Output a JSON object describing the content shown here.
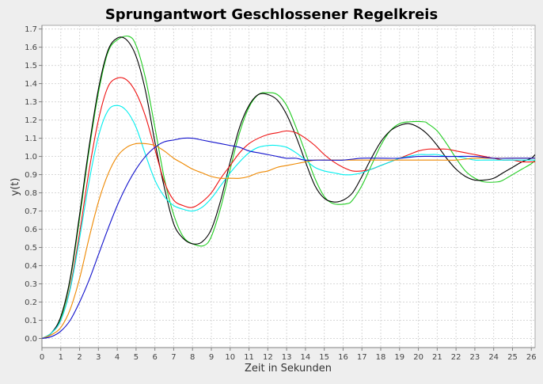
{
  "chart_data": {
    "type": "line",
    "title": "Sprungantwort Geschlossener Regelkreis",
    "xlabel": "Zeit in Sekunden",
    "ylabel": "y(t)",
    "xlim": [
      0,
      26.2
    ],
    "ylim": [
      -0.05,
      1.72
    ],
    "x_ticks": [
      0,
      1,
      2,
      3,
      4,
      5,
      6,
      7,
      8,
      9,
      10,
      11,
      12,
      13,
      14,
      15,
      16,
      17,
      18,
      19,
      20,
      21,
      22,
      23,
      24,
      25,
      26
    ],
    "y_ticks": [
      "0.0",
      "0.1",
      "0.2",
      "0.3",
      "0.4",
      "0.5",
      "0.6",
      "0.7",
      "0.8",
      "0.9",
      "1.0",
      "1.1",
      "1.2",
      "1.3",
      "1.4",
      "1.5",
      "1.6",
      "1.7"
    ],
    "grid": true,
    "legend": "none",
    "colors": {
      "background": "#eeeeee",
      "plot_background": "#ffffff",
      "grid": "#d8d8d8",
      "axis": "#808080"
    },
    "series": [
      {
        "color": "#22cc22",
        "x": [
          0,
          0.5,
          1,
          1.5,
          2,
          2.5,
          3,
          3.5,
          4,
          4.6,
          5,
          5.5,
          6,
          6.5,
          7,
          7.5,
          8,
          8.6,
          9,
          9.5,
          10,
          10.5,
          11,
          11.5,
          12,
          12.5,
          13,
          13.5,
          14,
          14.5,
          15,
          15.5,
          16.2,
          16.5,
          17,
          17.5,
          18,
          18.5,
          19,
          19.5,
          20.3,
          20.5,
          21,
          21.5,
          22,
          22.5,
          23,
          23.5,
          24.2,
          24.5,
          25,
          25.5,
          26,
          26.2
        ],
        "y": [
          0,
          0.03,
          0.11,
          0.32,
          0.66,
          1.03,
          1.35,
          1.57,
          1.64,
          1.66,
          1.61,
          1.43,
          1.16,
          0.88,
          0.68,
          0.56,
          0.52,
          0.51,
          0.56,
          0.72,
          0.93,
          1.13,
          1.27,
          1.34,
          1.35,
          1.34,
          1.28,
          1.16,
          1.02,
          0.88,
          0.78,
          0.74,
          0.74,
          0.76,
          0.84,
          0.95,
          1.06,
          1.14,
          1.18,
          1.19,
          1.19,
          1.18,
          1.14,
          1.07,
          0.99,
          0.92,
          0.88,
          0.86,
          0.86,
          0.87,
          0.9,
          0.93,
          0.96,
          0.98
        ]
      },
      {
        "color": "#000000",
        "x": [
          0,
          0.5,
          1,
          1.5,
          2,
          2.5,
          3,
          3.5,
          4,
          4.5,
          5,
          5.5,
          6,
          6.5,
          7,
          7.5,
          8,
          8.5,
          9,
          9.5,
          10,
          10.5,
          11,
          11.5,
          12,
          12.5,
          13,
          13.5,
          14,
          14.5,
          15,
          15.5,
          16,
          16.5,
          17,
          17.5,
          18,
          18.5,
          19,
          19.5,
          20,
          20.5,
          21,
          21.5,
          22,
          22.5,
          23,
          23.5,
          24,
          24.5,
          25,
          25.5,
          26,
          26.2
        ],
        "y": [
          0,
          0.03,
          0.12,
          0.33,
          0.68,
          1.05,
          1.37,
          1.58,
          1.65,
          1.64,
          1.55,
          1.36,
          1.08,
          0.83,
          0.63,
          0.55,
          0.52,
          0.53,
          0.6,
          0.76,
          0.97,
          1.16,
          1.28,
          1.34,
          1.34,
          1.31,
          1.23,
          1.11,
          0.97,
          0.84,
          0.77,
          0.75,
          0.76,
          0.8,
          0.89,
          0.99,
          1.08,
          1.14,
          1.17,
          1.18,
          1.16,
          1.12,
          1.06,
          0.99,
          0.93,
          0.89,
          0.87,
          0.87,
          0.88,
          0.91,
          0.94,
          0.97,
          0.99,
          1.01
        ]
      },
      {
        "color": "#ee1111",
        "x": [
          0,
          0.5,
          1,
          1.5,
          2,
          2.5,
          3,
          3.5,
          4,
          4.5,
          5,
          5.5,
          6,
          6.5,
          7,
          7.5,
          8,
          8.5,
          9,
          9.5,
          10,
          10.5,
          11,
          11.5,
          12,
          12.5,
          13,
          13.5,
          14,
          14.5,
          15,
          15.5,
          16,
          16.5,
          17,
          17.5,
          18,
          18.5,
          19,
          19.5,
          20,
          20.5,
          21,
          21.5,
          22,
          22.5,
          23,
          23.5,
          24,
          24.5,
          25,
          25.5,
          26,
          26.2
        ],
        "y": [
          0,
          0.03,
          0.1,
          0.28,
          0.58,
          0.92,
          1.2,
          1.38,
          1.43,
          1.42,
          1.35,
          1.22,
          1.04,
          0.86,
          0.76,
          0.73,
          0.72,
          0.75,
          0.8,
          0.88,
          0.95,
          1.02,
          1.07,
          1.1,
          1.12,
          1.13,
          1.14,
          1.13,
          1.1,
          1.06,
          1.01,
          0.97,
          0.94,
          0.92,
          0.92,
          0.93,
          0.95,
          0.97,
          0.99,
          1.01,
          1.03,
          1.04,
          1.04,
          1.04,
          1.03,
          1.02,
          1.01,
          1.0,
          0.99,
          0.98,
          0.98,
          0.97,
          0.97,
          0.97
        ]
      },
      {
        "color": "#00eeee",
        "x": [
          0,
          0.5,
          1,
          1.5,
          2,
          2.5,
          3,
          3.5,
          4,
          4.5,
          5,
          5.5,
          6,
          6.5,
          7,
          7.5,
          8,
          8.5,
          9,
          9.5,
          10,
          10.5,
          11,
          11.5,
          12,
          12.5,
          13,
          13.5,
          14,
          14.5,
          15,
          15.5,
          16,
          16.5,
          17,
          17.5,
          18,
          18.5,
          19,
          19.5,
          20,
          20.5,
          21,
          21.5,
          22,
          22.5,
          23,
          23.5,
          24,
          24.5,
          25,
          25.5,
          26,
          26.2
        ],
        "y": [
          0,
          0.03,
          0.1,
          0.27,
          0.55,
          0.86,
          1.11,
          1.25,
          1.28,
          1.25,
          1.16,
          1.01,
          0.87,
          0.78,
          0.73,
          0.71,
          0.7,
          0.72,
          0.77,
          0.84,
          0.91,
          0.97,
          1.02,
          1.05,
          1.06,
          1.06,
          1.05,
          1.02,
          0.98,
          0.94,
          0.92,
          0.91,
          0.9,
          0.9,
          0.91,
          0.93,
          0.95,
          0.97,
          0.99,
          1.0,
          1.01,
          1.01,
          1.01,
          1.0,
          1.0,
          0.99,
          0.98,
          0.98,
          0.98,
          0.98,
          0.98,
          0.98,
          0.98,
          0.98
        ]
      },
      {
        "color": "#ee8800",
        "x": [
          0,
          0.5,
          1,
          1.5,
          2,
          2.5,
          3,
          3.5,
          4,
          4.5,
          5,
          5.5,
          6,
          6.5,
          7,
          7.5,
          8,
          8.5,
          9,
          9.5,
          10,
          10.5,
          11,
          11.5,
          12,
          12.5,
          13,
          13.5,
          14,
          14.5,
          15,
          15.5,
          16,
          17,
          18,
          19,
          20,
          21,
          22,
          23,
          24,
          25,
          26,
          26.2
        ],
        "y": [
          0,
          0.02,
          0.06,
          0.16,
          0.33,
          0.55,
          0.75,
          0.9,
          1.0,
          1.05,
          1.07,
          1.07,
          1.06,
          1.03,
          0.99,
          0.96,
          0.93,
          0.91,
          0.89,
          0.88,
          0.88,
          0.88,
          0.89,
          0.91,
          0.92,
          0.94,
          0.95,
          0.96,
          0.97,
          0.98,
          0.98,
          0.98,
          0.98,
          0.98,
          0.98,
          0.98,
          0.98,
          0.98,
          0.98,
          0.99,
          0.99,
          0.99,
          0.99,
          0.99
        ]
      },
      {
        "color": "#1111cc",
        "x": [
          0,
          0.5,
          1,
          1.5,
          2,
          2.5,
          3,
          3.5,
          4,
          4.5,
          5,
          5.5,
          6,
          6.5,
          7,
          7.5,
          8,
          8.5,
          9,
          9.5,
          10,
          10.5,
          11,
          11.5,
          12,
          12.5,
          13,
          13.5,
          14,
          15,
          16,
          17,
          18,
          19,
          20,
          21,
          22,
          23,
          24,
          25,
          26,
          26.2
        ],
        "y": [
          0,
          0.01,
          0.04,
          0.1,
          0.2,
          0.32,
          0.46,
          0.6,
          0.73,
          0.84,
          0.93,
          1.0,
          1.05,
          1.08,
          1.09,
          1.1,
          1.1,
          1.09,
          1.08,
          1.07,
          1.06,
          1.05,
          1.03,
          1.02,
          1.01,
          1.0,
          0.99,
          0.99,
          0.98,
          0.98,
          0.98,
          0.99,
          0.99,
          0.99,
          1.0,
          1.0,
          1.0,
          1.0,
          0.99,
          0.99,
          0.99,
          0.99
        ]
      }
    ]
  }
}
